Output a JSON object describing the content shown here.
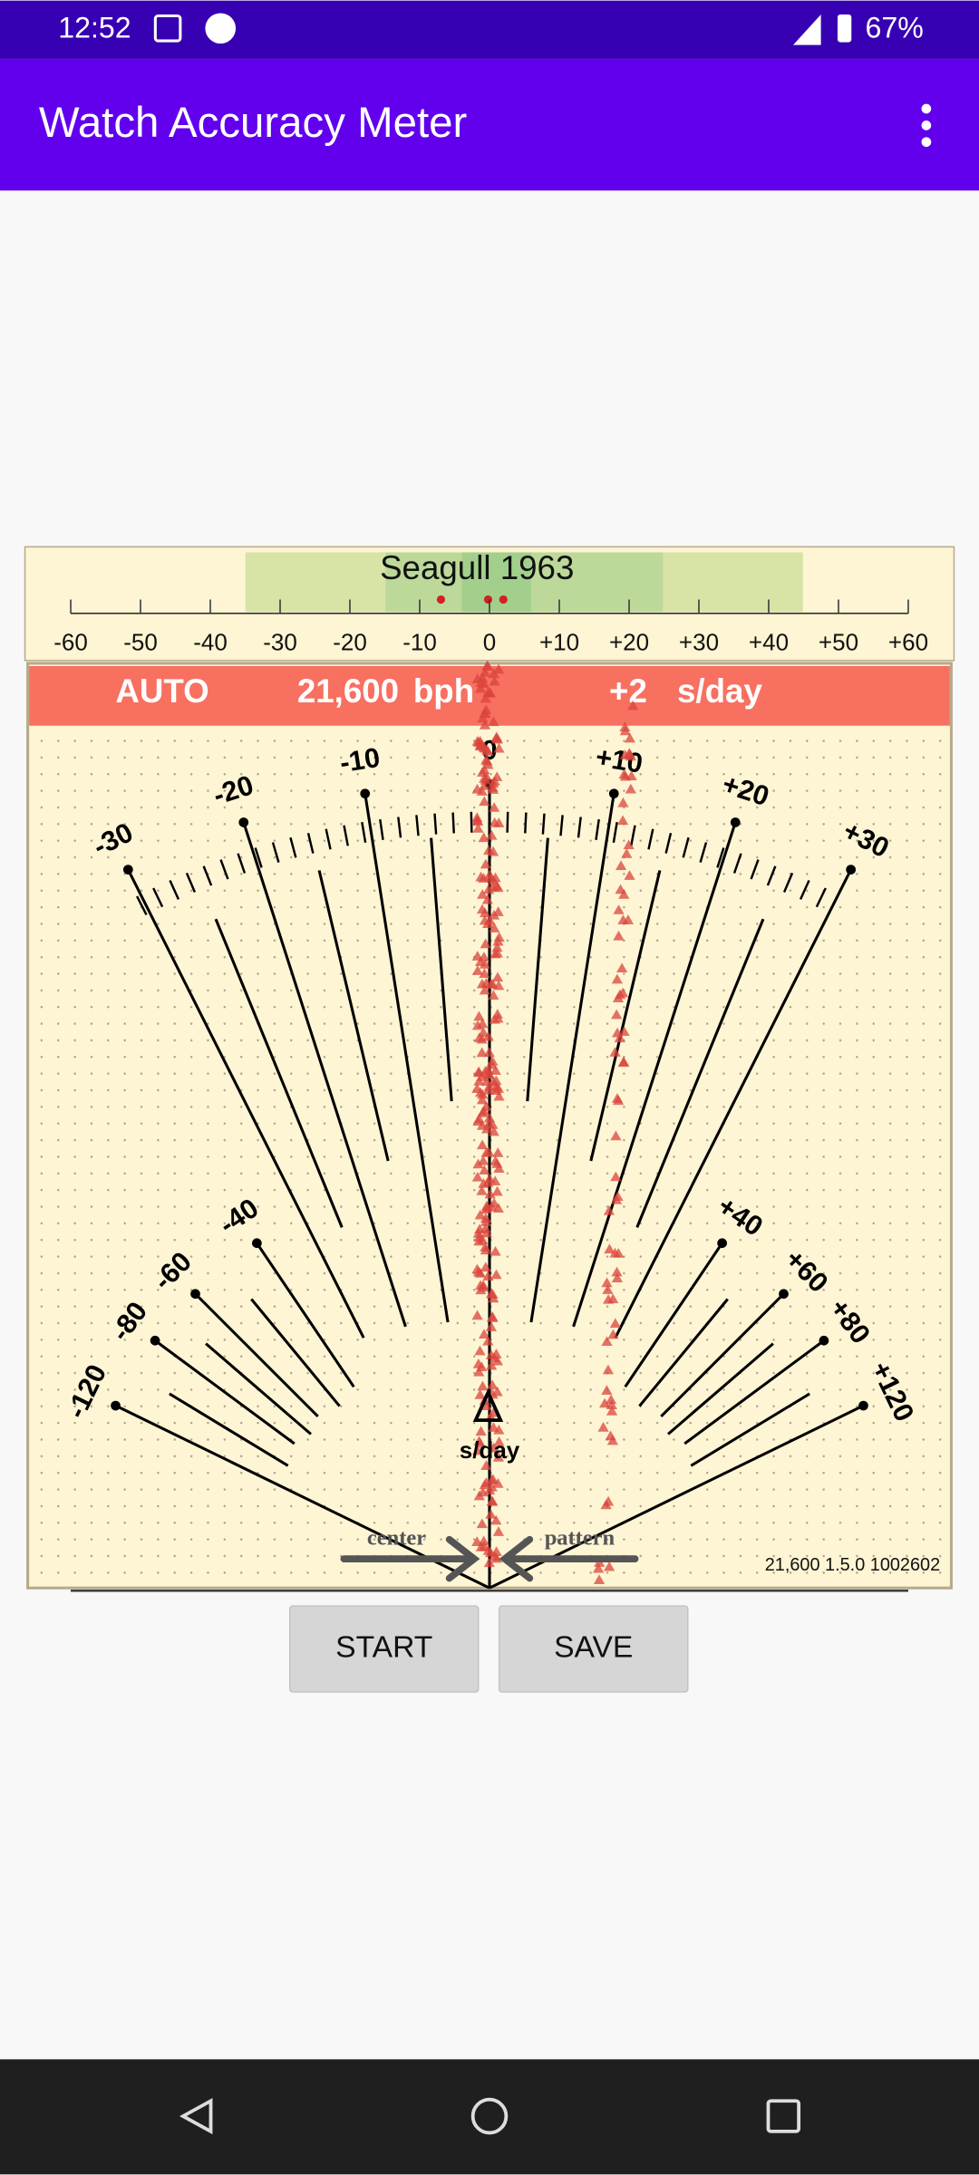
{
  "status_bar": {
    "time": "12:52",
    "battery": "67%"
  },
  "app_bar": {
    "title": "Watch Accuracy Meter"
  },
  "scale": {
    "title": "Seagull 1963",
    "labels": [
      "-60",
      "-50",
      "-40",
      "-30",
      "-20",
      "-10",
      "0",
      "+10",
      "+20",
      "+30",
      "+40",
      "+50",
      "+60"
    ]
  },
  "header": {
    "mode": "AUTO",
    "rate": "21,600",
    "rate_unit": "bph",
    "deviation": "+2",
    "deviation_unit": "s/day"
  },
  "dial": {
    "upper_labels": [
      "-30",
      "-20",
      "-10",
      "0",
      "+10",
      "+20",
      "+30"
    ],
    "lower_labels": [
      "-120",
      "-80",
      "-60",
      "-40",
      "+40",
      "+60",
      "+80",
      "+120"
    ],
    "unit": "s/day",
    "center_label": "center",
    "pattern_label": "pattern",
    "version": "21,600 1.5.0 1002602"
  },
  "buttons": [
    "START",
    "SAVE"
  ]
}
